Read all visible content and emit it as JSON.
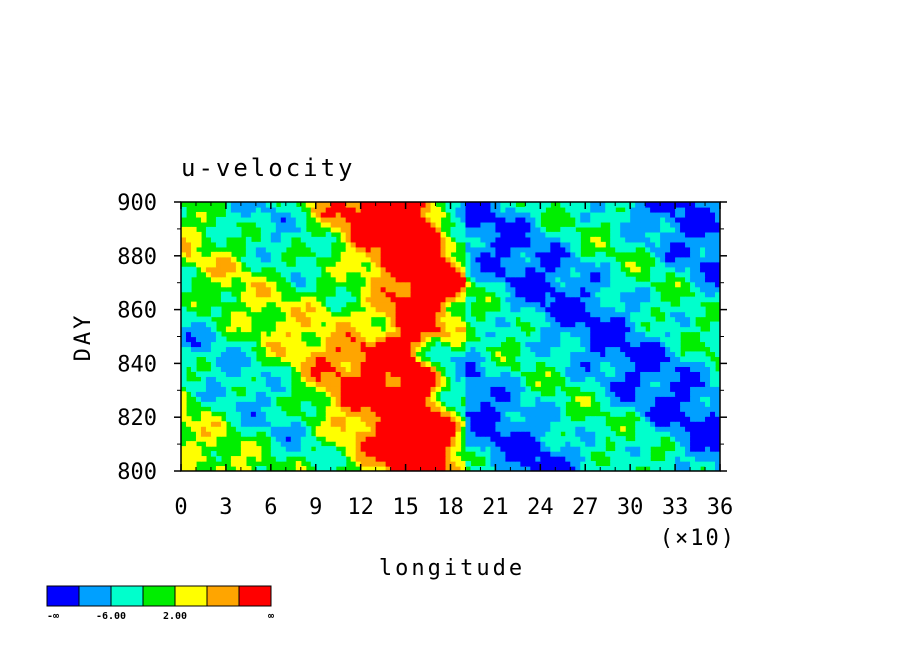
{
  "chart_data": {
    "type": "heatmap",
    "title": "u-velocity",
    "xlabel": "longitude",
    "ylabel": "DAY",
    "x_scale_note": "(×10)",
    "xlim": [
      0,
      36
    ],
    "ylim": [
      800,
      900
    ],
    "x_ticks": [
      "0",
      "3",
      "6",
      "9",
      "12",
      "15",
      "18",
      "21",
      "24",
      "27",
      "30",
      "33",
      "36"
    ],
    "y_ticks": [
      "800",
      "820",
      "840",
      "860",
      "880",
      "900"
    ],
    "colorbar": {
      "colors": [
        "#0000ff",
        "#00a0ff",
        "#00ffcc",
        "#00ee00",
        "#ffff00",
        "#ffa500",
        "#ff0000"
      ],
      "labels": [
        "-∞",
        "-6.00",
        "2.00",
        "∞"
      ]
    }
  }
}
